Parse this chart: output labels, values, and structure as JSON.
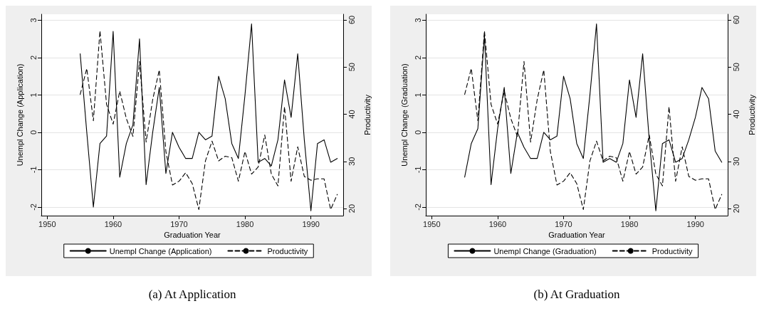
{
  "chart_data": [
    {
      "type": "line",
      "xlabel": "Graduation Year",
      "ylabel": "Unempl Change (Application)",
      "y2label": "Productivity",
      "annotations": [
        "(a) At Application"
      ],
      "x": [
        1955,
        1956,
        1957,
        1958,
        1959,
        1960,
        1961,
        1962,
        1963,
        1964,
        1965,
        1966,
        1967,
        1968,
        1969,
        1970,
        1971,
        1972,
        1973,
        1974,
        1975,
        1976,
        1977,
        1978,
        1979,
        1980,
        1981,
        1982,
        1983,
        1984,
        1985,
        1986,
        1987,
        1988,
        1989,
        1990,
        1991,
        1992,
        1993,
        1994
      ],
      "series": [
        {
          "name": "Unempl Change (Application)",
          "color": "#000000",
          "line_style": "solid",
          "values": [
            2.1,
            0.0,
            -2.0,
            -0.3,
            -0.1,
            2.7,
            -1.2,
            -0.3,
            0.2,
            2.5,
            -1.4,
            0.0,
            1.2,
            -1.1,
            0.0,
            -0.4,
            -0.7,
            -0.7,
            0.0,
            -0.2,
            -0.1,
            1.5,
            0.9,
            -0.3,
            -0.7,
            1.0,
            2.9,
            -0.8,
            -0.7,
            -0.9,
            -0.2,
            1.4,
            0.4,
            2.1,
            -0.2,
            -2.1,
            -0.3,
            -0.2,
            -0.8,
            -0.7
          ]
        },
        {
          "name": "Productivity",
          "color": "#000000",
          "line_style": "dashed",
          "axis": "y2",
          "values": [
            44.2,
            49.7,
            38.6,
            57.7,
            42.1,
            37.9,
            44.9,
            39.1,
            35.3,
            51.2,
            34.1,
            43.1,
            49.4,
            32.1,
            25.0,
            25.8,
            27.6,
            25.3,
            19.8,
            30.1,
            34.3,
            30.1,
            31.1,
            30.8,
            25.8,
            32.1,
            27.3,
            28.8,
            35.6,
            27.3,
            24.8,
            41.6,
            25.8,
            33.1,
            26.8,
            26.0,
            26.3,
            26.3,
            19.8,
            23.0
          ]
        }
      ],
      "xlim": [
        1949.1,
        1994.9
      ],
      "xticks": [
        1950,
        1960,
        1970,
        1980,
        1990
      ],
      "ylim": [
        -2.23,
        3.16
      ],
      "yticks": [
        -2,
        -1,
        0,
        1,
        2,
        3
      ],
      "y2lim": [
        18.5,
        61.2
      ],
      "y2ticks": [
        20,
        30,
        40,
        50,
        60
      ],
      "grid": "y",
      "legend": "bottom",
      "marker": "none"
    },
    {
      "type": "line",
      "xlabel": "Graduation Year",
      "ylabel": "Unempl Change (Graduation)",
      "y2label": "Productivity",
      "annotations": [
        "(b) At Graduation"
      ],
      "x": [
        1955,
        1956,
        1957,
        1958,
        1959,
        1960,
        1961,
        1962,
        1963,
        1964,
        1965,
        1966,
        1967,
        1968,
        1969,
        1970,
        1971,
        1972,
        1973,
        1974,
        1975,
        1976,
        1977,
        1978,
        1979,
        1980,
        1981,
        1982,
        1983,
        1984,
        1985,
        1986,
        1987,
        1988,
        1989,
        1990,
        1991,
        1992,
        1993,
        1994
      ],
      "series": [
        {
          "name": "Unempl Change (Graduation)",
          "color": "#000000",
          "line_style": "solid",
          "values": [
            -1.2,
            -0.3,
            0.1,
            2.6,
            -1.4,
            0.1,
            1.2,
            -1.1,
            0.0,
            -0.4,
            -0.7,
            -0.7,
            0.0,
            -0.2,
            -0.1,
            1.5,
            0.9,
            -0.3,
            -0.7,
            1.0,
            2.9,
            -0.8,
            -0.7,
            -0.8,
            -0.3,
            1.4,
            0.4,
            2.1,
            -0.2,
            -2.1,
            -0.3,
            -0.2,
            -0.8,
            -0.7,
            -0.2,
            0.4,
            1.2,
            0.9,
            -0.5,
            -0.8
          ]
        },
        {
          "name": "Productivity",
          "color": "#000000",
          "line_style": "dashed",
          "axis": "y2",
          "values": [
            44.2,
            49.7,
            38.6,
            57.7,
            42.1,
            37.9,
            44.9,
            39.1,
            35.3,
            51.2,
            34.1,
            43.1,
            49.4,
            32.1,
            25.0,
            25.8,
            27.6,
            25.3,
            19.8,
            30.1,
            34.3,
            30.1,
            31.1,
            30.8,
            25.8,
            32.1,
            27.3,
            28.8,
            35.6,
            27.3,
            24.8,
            41.6,
            25.8,
            33.1,
            26.8,
            26.0,
            26.3,
            26.3,
            19.8,
            23.0
          ]
        }
      ],
      "xlim": [
        1949.1,
        1994.9
      ],
      "xticks": [
        1950,
        1960,
        1970,
        1980,
        1990
      ],
      "ylim": [
        -2.23,
        3.16
      ],
      "yticks": [
        -2,
        -1,
        0,
        1,
        2,
        3
      ],
      "y2lim": [
        18.5,
        61.2
      ],
      "y2ticks": [
        20,
        30,
        40,
        50,
        60
      ],
      "grid": "y",
      "legend": "bottom",
      "marker": "none"
    }
  ]
}
